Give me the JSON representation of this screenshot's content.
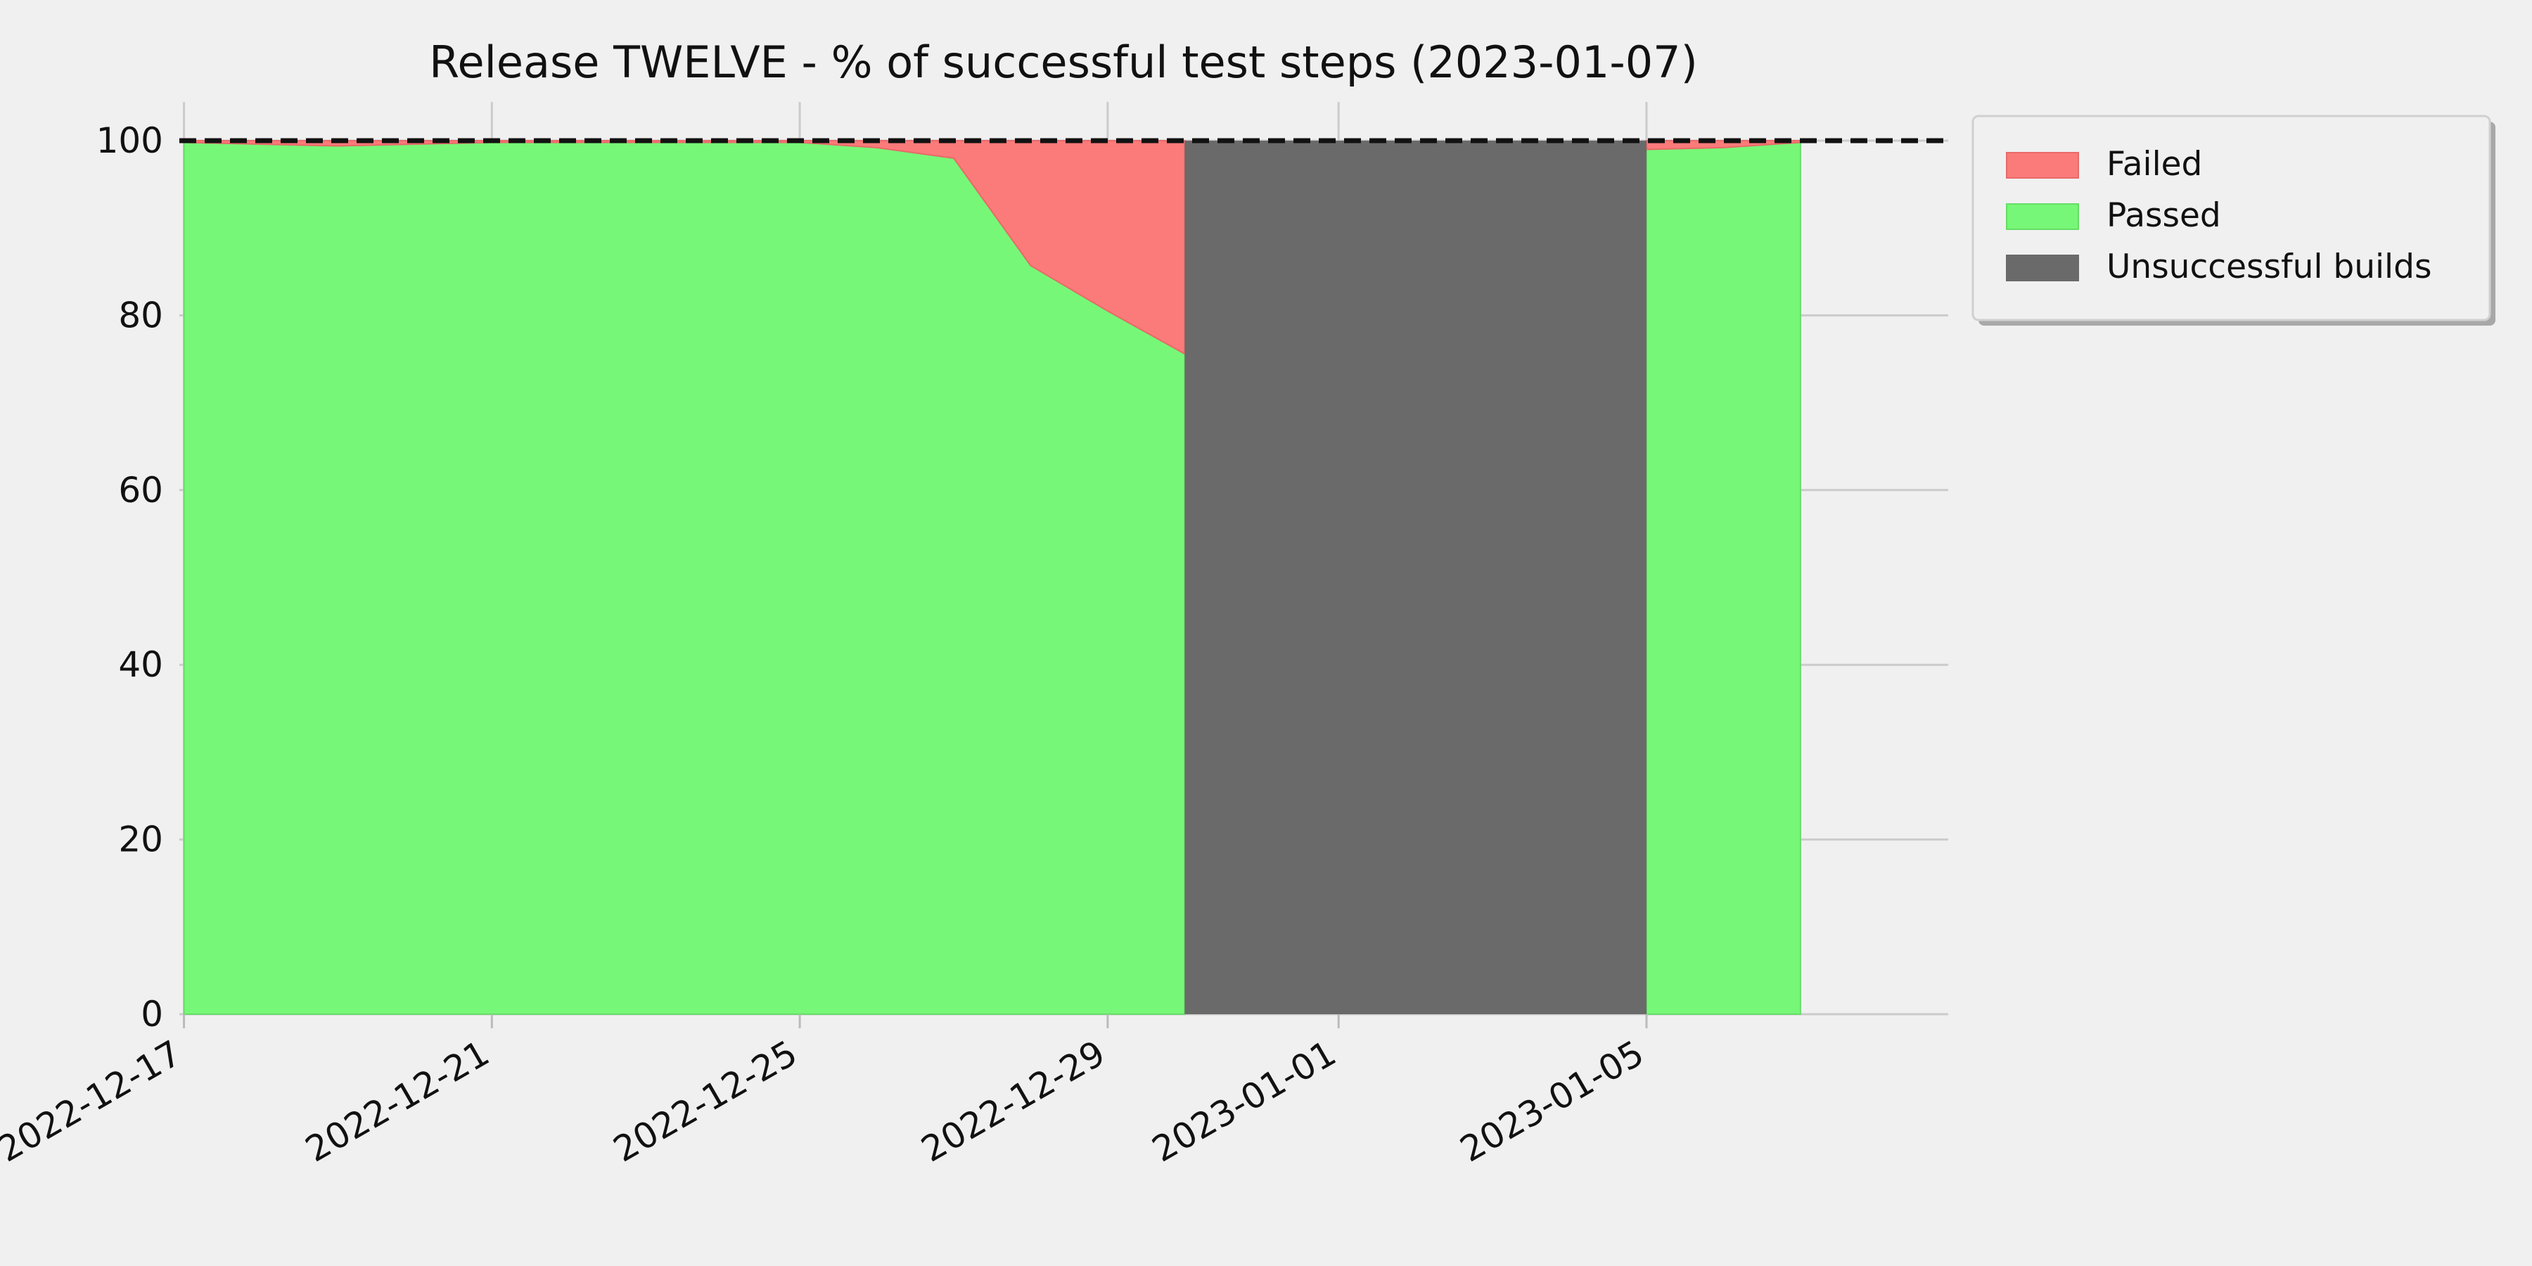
{
  "chart_data": {
    "type": "area",
    "title": "Release TWELVE - % of successful test steps (2023-01-07)",
    "xlabel": "",
    "ylabel": "",
    "ylim": [
      0,
      100
    ],
    "xlim": [
      "2022-12-17",
      "2023-01-09"
    ],
    "y_ticks": [
      0,
      20,
      40,
      60,
      80,
      100
    ],
    "x_ticks": [
      "2022-12-17",
      "2022-12-21",
      "2022-12-25",
      "2022-12-29",
      "2023-01-01",
      "2023-01-05"
    ],
    "grid": true,
    "reference_line": {
      "y": 100,
      "style": "dashed",
      "color": "#111111"
    },
    "legend_position": "top-right outside",
    "series": [
      {
        "name": "Failed",
        "color": "#fb7a7a",
        "x": [
          "2022-12-17",
          "2022-12-19",
          "2022-12-21",
          "2022-12-25",
          "2022-12-26",
          "2022-12-27",
          "2022-12-28",
          "2022-12-29",
          "2022-12-30",
          "2023-01-05",
          "2023-01-06",
          "2023-01-07"
        ],
        "values": [
          0.2,
          0.6,
          0.2,
          0.2,
          0.8,
          2.0,
          14.3,
          19.5,
          24.4,
          1.0,
          0.8,
          0.2
        ]
      },
      {
        "name": "Passed",
        "color": "#77f777",
        "x": [
          "2022-12-17",
          "2022-12-19",
          "2022-12-21",
          "2022-12-25",
          "2022-12-26",
          "2022-12-27",
          "2022-12-28",
          "2022-12-29",
          "2022-12-30",
          "2023-01-05",
          "2023-01-06",
          "2023-01-07"
        ],
        "values": [
          99.8,
          99.4,
          99.8,
          99.8,
          99.2,
          98.0,
          85.7,
          80.5,
          75.6,
          99.0,
          99.2,
          99.8
        ]
      },
      {
        "name": "Unsuccessful builds",
        "color": "#6a6a6a",
        "x_range": [
          "2022-12-30",
          "2023-01-05"
        ],
        "values": [
          100
        ]
      }
    ]
  }
}
